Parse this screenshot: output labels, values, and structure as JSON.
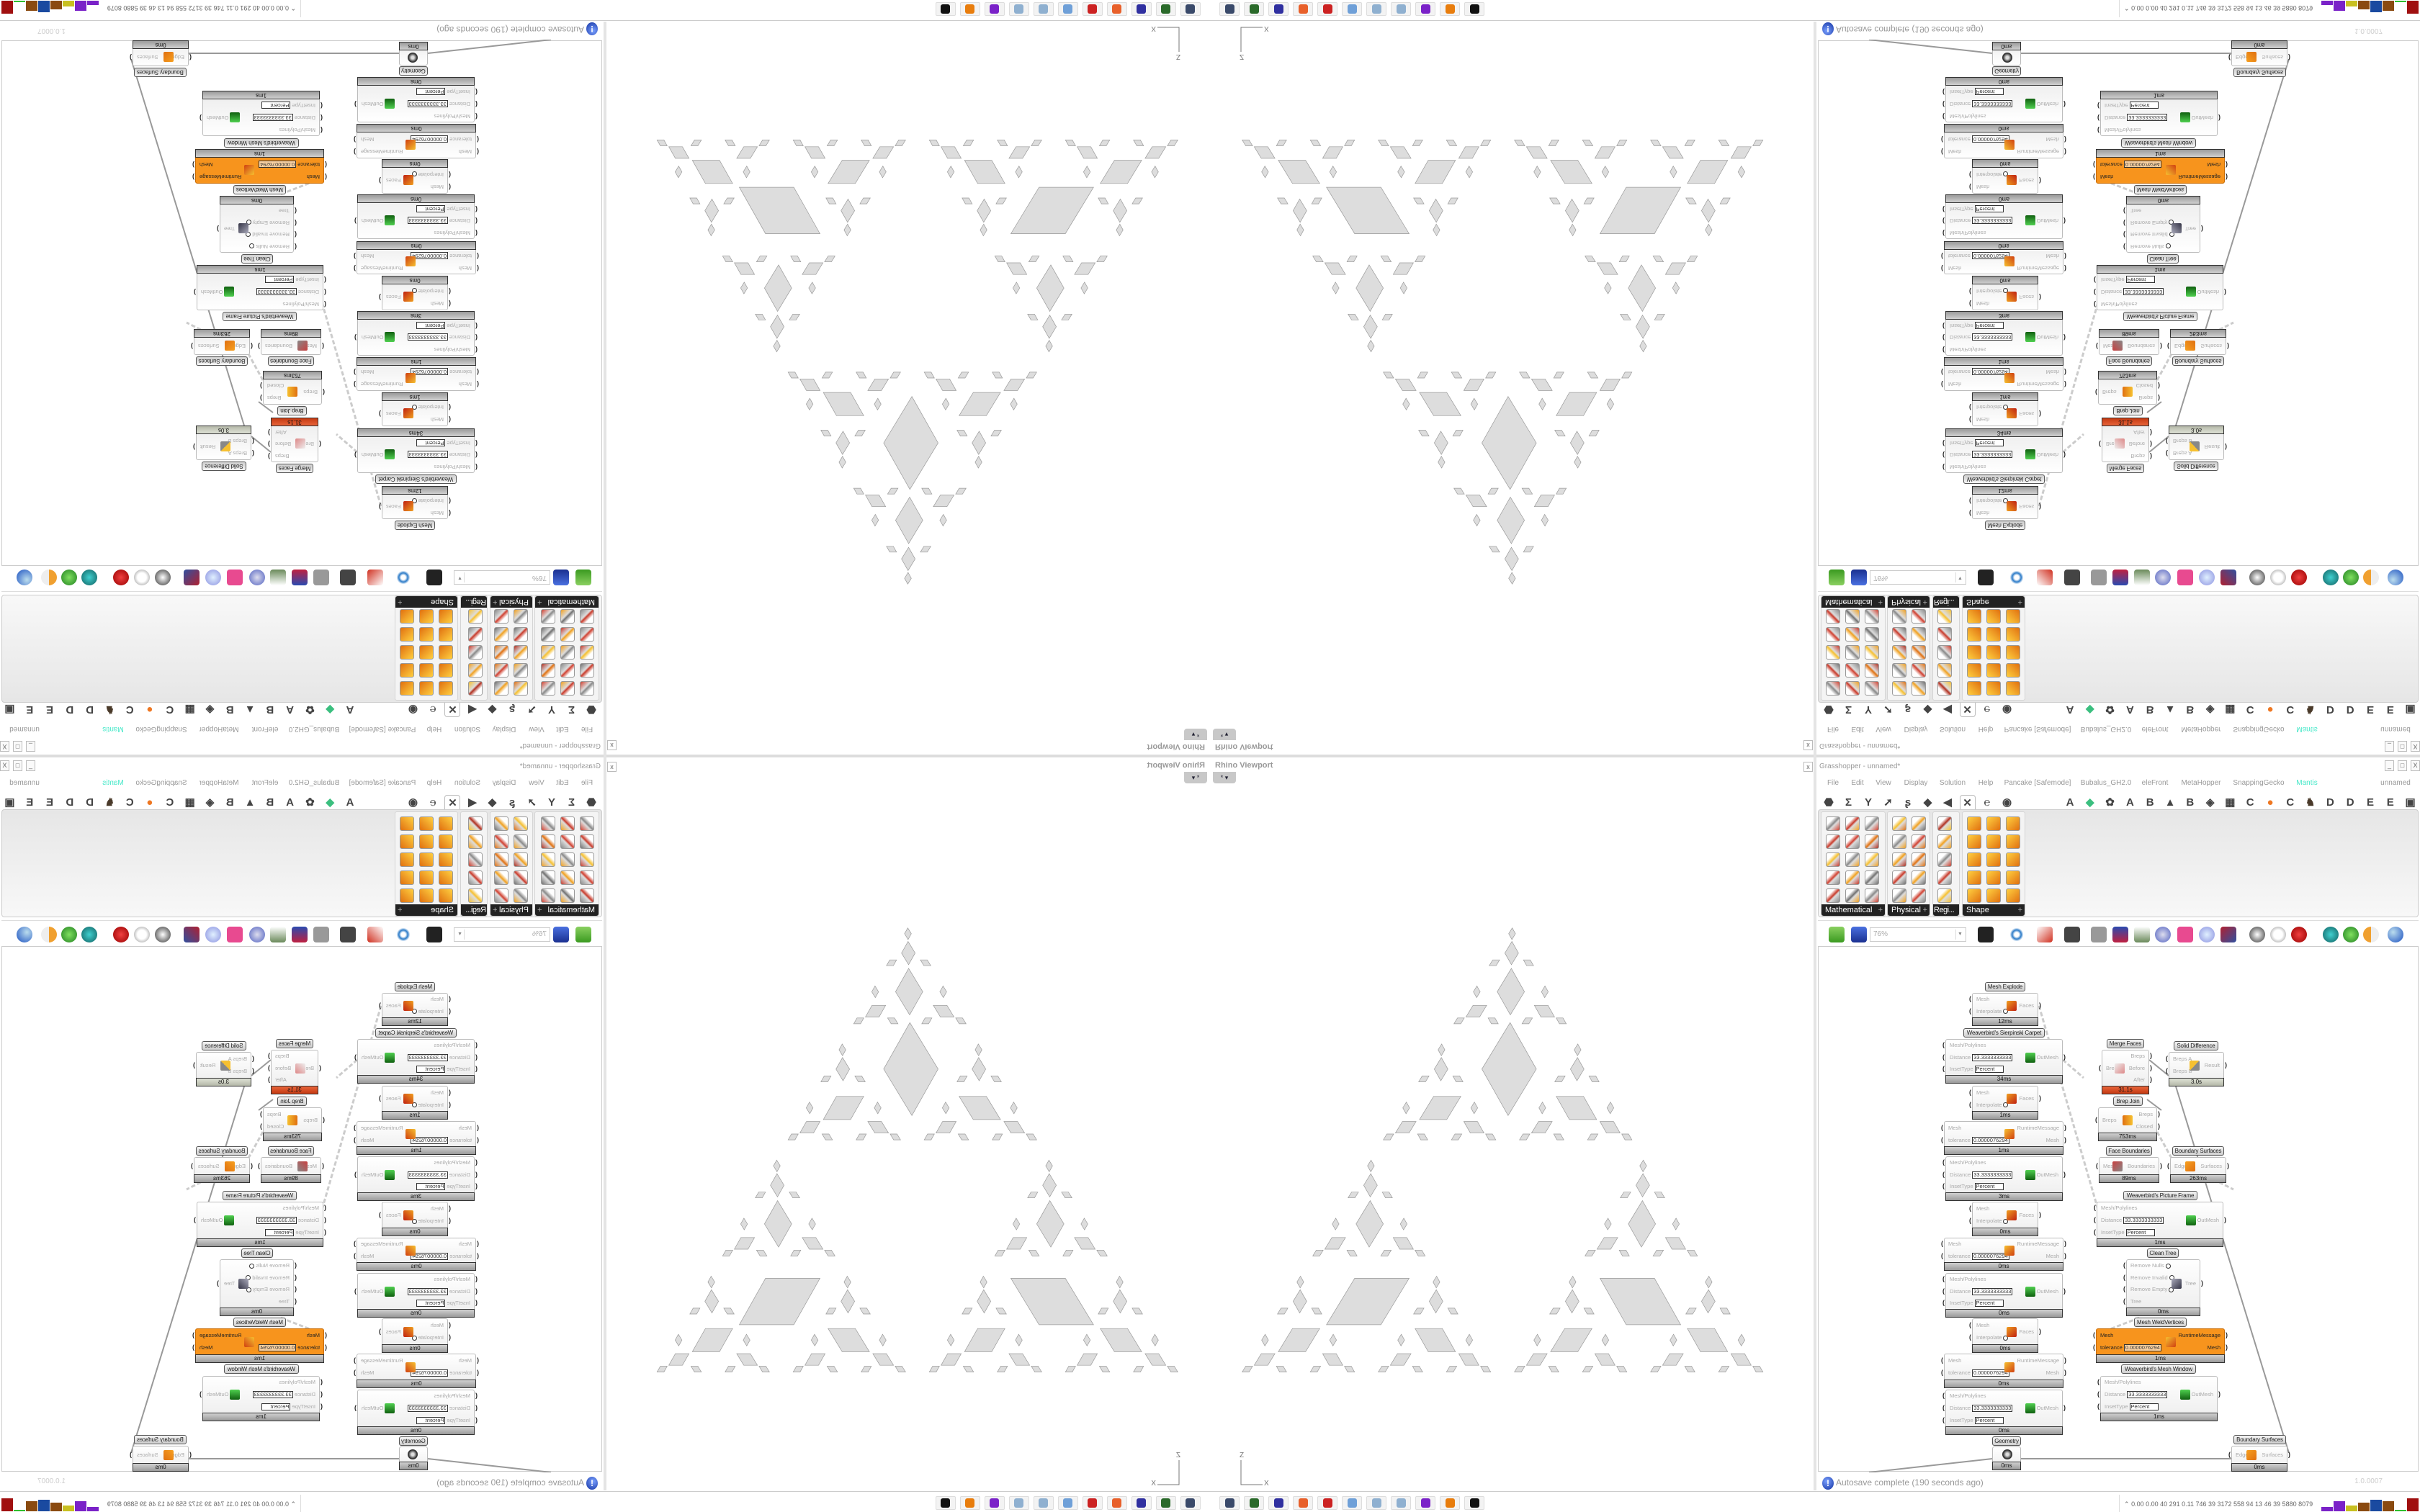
{
  "rhino": {
    "viewport_title": "Rhino Viewport",
    "viewport_button": "* ▾",
    "axis_labels": {
      "vertical": "Z",
      "horizontal": "X"
    },
    "fractal_fill": "#dddddd",
    "fractal_stroke": "#9a9a9a"
  },
  "grasshopper": {
    "close_panel": "x",
    "title": "Grasshopper - unnamed*",
    "window_controls": [
      "_",
      "□",
      "X"
    ],
    "menu": [
      "File",
      "Edit",
      "View",
      "Display",
      "Solution",
      "Help",
      "Pancake [Safemode]",
      "Bubalus_GH2.0",
      "eleFront",
      "MetaHopper",
      "SnappingGecko",
      "Mantis",
      "unnamed"
    ],
    "menu_highlight_color": "#44e8c8",
    "tabs": [
      {
        "glyph": "⬣",
        "icon": "params-icon"
      },
      {
        "glyph": "Σ",
        "icon": "maths-icon"
      },
      {
        "glyph": "Y",
        "icon": "sets-icon"
      },
      {
        "glyph": "➚",
        "icon": "vector-icon"
      },
      {
        "glyph": "ʂ",
        "icon": "curve-icon"
      },
      {
        "glyph": "◆",
        "icon": "surface-icon"
      },
      {
        "glyph": "◀",
        "icon": "mesh-icon"
      },
      {
        "glyph": "✕",
        "icon": "intersect-icon",
        "selected": true
      },
      {
        "glyph": "℮",
        "icon": "transform-icon"
      },
      {
        "glyph": "◉",
        "icon": "display-icon"
      },
      {
        "glyph": "A",
        "icon": "plugin-a-icon"
      },
      {
        "glyph": "◆",
        "icon": "plugin-crystal-icon",
        "color": "#3bbf7f"
      },
      {
        "glyph": "✿",
        "icon": "plugin-flower-icon"
      },
      {
        "glyph": "A",
        "icon": "plugin-a2-icon"
      },
      {
        "glyph": "B",
        "icon": "plugin-b-icon"
      },
      {
        "glyph": "▲",
        "icon": "plugin-mountain-icon"
      },
      {
        "glyph": "B",
        "icon": "plugin-b2-icon"
      },
      {
        "glyph": "◈",
        "icon": "plugin-shield-icon"
      },
      {
        "glyph": "▦",
        "icon": "plugin-grid-icon"
      },
      {
        "glyph": "C",
        "icon": "plugin-c-icon"
      },
      {
        "glyph": "●",
        "icon": "plugin-orange-icon",
        "color": "#ee7722"
      },
      {
        "glyph": "C",
        "icon": "plugin-c2-icon"
      },
      {
        "glyph": "♞",
        "icon": "plugin-animal-icon",
        "color": "#4a3a2a"
      },
      {
        "glyph": "D",
        "icon": "plugin-d-icon"
      },
      {
        "glyph": "D",
        "icon": "plugin-d2-icon"
      },
      {
        "glyph": "E",
        "icon": "plugin-e-icon"
      },
      {
        "glyph": "E",
        "icon": "plugin-e2-icon"
      },
      {
        "glyph": "▣",
        "icon": "plugin-box-icon"
      }
    ],
    "palette_groups": [
      {
        "label": "Mathematical",
        "cols": 3
      },
      {
        "label": "Physical",
        "cols": 2
      },
      {
        "label": "Regi...",
        "cols": 1
      },
      {
        "label": "Shape",
        "cols": 3
      }
    ],
    "toolbar": {
      "zoom": "76%",
      "icons": [
        "open-file-icon",
        "save-file-icon",
        "zoom-extents-icon",
        "preview-eye-icon",
        "sketch-icon",
        "cluster-icon",
        "email-icon",
        "gha-icon",
        "window-icon",
        "search-icon",
        "package-icon",
        "balloon-icon",
        "wires-icon",
        "preview-off-icon",
        "wireframe-icon",
        "shaded-icon",
        "teal-shape-icon",
        "green-shape-icon",
        "half-sphere-icon",
        "sphere-icon"
      ]
    },
    "nodes": [
      {
        "label": "Mesh Explode",
        "inputs": [
          {
            "name": "Mesh"
          },
          {
            "name": "Interpolate",
            "toggle": true
          }
        ],
        "outputs": [
          "Faces"
        ],
        "time": "12ms",
        "icon": "mesh-explode-icon"
      },
      {
        "label": "Weaverbird's Sierpinski Carpet",
        "inputs": [
          {
            "name": "Mesh/Polylines"
          },
          {
            "name": "Distance",
            "value": "33.3333333333"
          },
          {
            "name": "InsetType",
            "value": "Percent"
          }
        ],
        "outputs": [
          "OutMesh"
        ],
        "time": "34ms",
        "icon": "weaverbird-icon"
      },
      {
        "label": "",
        "inputs": [
          {
            "name": "Mesh"
          },
          {
            "name": "Interpolate",
            "toggle": true
          }
        ],
        "outputs": [
          "Faces"
        ],
        "time": "1ms",
        "icon": "mesh-explode-icon"
      },
      {
        "label": "",
        "inputs": [
          {
            "name": "Mesh"
          },
          {
            "name": "tolerance",
            "value": "0.0000076294"
          }
        ],
        "outputs": [
          "RuntimeMessage",
          "Mesh"
        ],
        "time": "1ms",
        "icon": "weld-icon"
      },
      {
        "label": "",
        "inputs": [
          {
            "name": "Mesh/Polylines"
          },
          {
            "name": "Distance",
            "value": "33.3333333333"
          },
          {
            "name": "InsetType",
            "value": "Percent"
          }
        ],
        "outputs": [
          "OutMesh"
        ],
        "time": "3ms",
        "icon": "weaverbird-icon"
      },
      {
        "label": "",
        "inputs": [
          {
            "name": "Mesh"
          },
          {
            "name": "Interpolate",
            "toggle": true
          }
        ],
        "outputs": [
          "Faces"
        ],
        "time": "0ms",
        "icon": "mesh-explode-icon"
      },
      {
        "label": "",
        "inputs": [
          {
            "name": "Mesh"
          },
          {
            "name": "tolerance",
            "value": "0.0000076294"
          }
        ],
        "outputs": [
          "RuntimeMessage",
          "Mesh"
        ],
        "time": "0ms",
        "icon": "weld-icon"
      },
      {
        "label": "",
        "inputs": [
          {
            "name": "Mesh/Polylines"
          },
          {
            "name": "Distance",
            "value": "33.3333333333"
          },
          {
            "name": "InsetType",
            "value": "Percent"
          }
        ],
        "outputs": [
          "OutMesh"
        ],
        "time": "0ms",
        "icon": "weaverbird-icon"
      },
      {
        "label": "",
        "inputs": [
          {
            "name": "Mesh"
          },
          {
            "name": "Interpolate",
            "toggle": true
          }
        ],
        "outputs": [
          "Faces"
        ],
        "time": "0ms",
        "icon": "mesh-explode-icon"
      },
      {
        "label": "",
        "inputs": [
          {
            "name": "Mesh"
          },
          {
            "name": "tolerance",
            "value": "0.0000076294"
          }
        ],
        "outputs": [
          "RuntimeMessage",
          "Mesh"
        ],
        "time": "0ms",
        "icon": "weld-icon"
      },
      {
        "label": "",
        "inputs": [
          {
            "name": "Mesh/Polylines"
          },
          {
            "name": "Distance",
            "value": "33.3333333333"
          },
          {
            "name": "InsetType",
            "value": "Percent"
          }
        ],
        "outputs": [
          "OutMesh"
        ],
        "time": "0ms",
        "icon": "weaverbird-icon"
      },
      {
        "label": "Geometry",
        "inputs": [],
        "outputs": [],
        "time": "0ms",
        "icon": "geometry-icon"
      },
      {
        "label": "Merge Faces",
        "inputs": [
          {
            "name": "Brep"
          }
        ],
        "outputs": [
          "Breps",
          "Before",
          "After"
        ],
        "time": "31.1s",
        "bar": "red",
        "icon": "merge-faces-icon"
      },
      {
        "label": "Solid Difference",
        "inputs": [
          {
            "name": "Breps A"
          },
          {
            "name": "Breps B"
          }
        ],
        "outputs": [
          "Result"
        ],
        "time": "3.0s",
        "bar": "sage",
        "icon": "solid-difference-icon"
      },
      {
        "label": "Brep Join",
        "inputs": [
          {
            "name": "Breps"
          }
        ],
        "outputs": [
          "Breps",
          "Closed"
        ],
        "time": "753ms",
        "icon": "brep-join-icon"
      },
      {
        "label": "Face Boundaries",
        "inputs": [
          {
            "name": "Mesh"
          }
        ],
        "outputs": [
          "Boundaries"
        ],
        "time": "89ms",
        "icon": "face-boundaries-icon"
      },
      {
        "label": "Boundary Surfaces",
        "inputs": [
          {
            "name": "Edges"
          }
        ],
        "outputs": [
          "Surfaces"
        ],
        "time": "263ms",
        "icon": "boundary-surfaces-icon"
      },
      {
        "label": "Weaverbird's Picture Frame",
        "inputs": [
          {
            "name": "Mesh/Polylines"
          },
          {
            "name": "Distance",
            "value": "33.3333333333"
          },
          {
            "name": "InsetType",
            "value": "Percent"
          }
        ],
        "outputs": [
          "OutMesh"
        ],
        "time": "1ms",
        "icon": "weaverbird-icon"
      },
      {
        "label": "Clean Tree",
        "inputs": [
          {
            "name": "Remove Nulls",
            "toggle": true
          },
          {
            "name": "Remove Invalid",
            "toggle": true
          },
          {
            "name": "Remove Empty",
            "toggle": true
          },
          {
            "name": "Tree"
          }
        ],
        "outputs": [
          "Tree"
        ],
        "time": "0ms",
        "icon": "clean-tree-icon"
      },
      {
        "label": "Mesh WeldVertices",
        "inputs": [
          {
            "name": "Mesh"
          },
          {
            "name": "tolerance",
            "value": "0.0000076294"
          }
        ],
        "outputs": [
          "RuntimeMessage",
          "Mesh"
        ],
        "time": "1ms",
        "style": "orange",
        "icon": "weld-icon"
      },
      {
        "label": "Weaverbird's Mesh Window",
        "inputs": [
          {
            "name": "Mesh/Polylines"
          },
          {
            "name": "Distance",
            "value": "33.3333333333"
          },
          {
            "name": "InsetType",
            "value": "Percent"
          }
        ],
        "outputs": [
          "OutMesh"
        ],
        "time": "1ms",
        "icon": "weaverbird-icon"
      },
      {
        "label": "Boundary Surfaces",
        "inputs": [
          {
            "name": "Edges"
          }
        ],
        "outputs": [
          "Surfaces"
        ],
        "time": "0ms",
        "icon": "boundary-surfaces-icon"
      }
    ],
    "status": "Autosave complete (190 seconds ago)",
    "version": "1.0.0007"
  },
  "taskbar": {
    "apps": [
      {
        "icon": "monitor-settings-icon",
        "color": "#3a4a6a"
      },
      {
        "icon": "terminal-icon",
        "color": "#2a6a2a"
      },
      {
        "icon": "floppy-64-icon",
        "color": "#3030a0"
      },
      {
        "icon": "firefox-icon",
        "color": "#e8602a"
      },
      {
        "icon": "red-gear-icon",
        "color": "#cc2222"
      },
      {
        "icon": "calculator-icon",
        "color": "#6fa0d8"
      },
      {
        "icon": "paint-icon",
        "color": "#8fb0d0"
      },
      {
        "icon": "paint-icon",
        "color": "#8fb0d0"
      },
      {
        "icon": "purple-app-icon",
        "color": "#7a22c8"
      },
      {
        "icon": "blender-icon",
        "color": "#e87d0d"
      },
      {
        "icon": "rhino-icon",
        "color": "#111111"
      }
    ],
    "readout": "0.00 0.00   40   291   0.11   746   39   3172  558   94   13   46   39   5880 8079",
    "readout_arrow": "⌃"
  }
}
